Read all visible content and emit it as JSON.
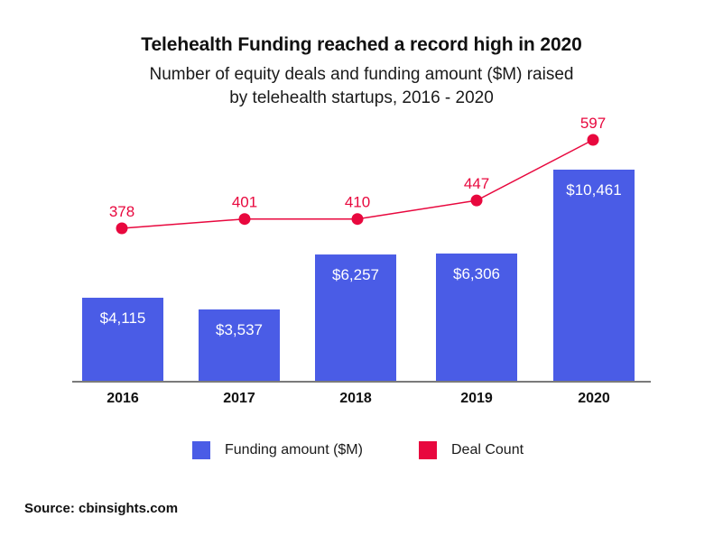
{
  "colors": {
    "bar": "#4A5CE6",
    "line": "#E8083E",
    "axis": "#7a7a7a",
    "bar_label": "#ffffff",
    "deal_label": "#E8083E"
  },
  "chart_data": {
    "type": "bar",
    "title": "Telehealth Funding reached a record high in 2020",
    "subtitle_lines": [
      "Number of equity deals and funding amount ($M) raised",
      "by telehealth startups, 2016 - 2020"
    ],
    "categories": [
      "2016",
      "2017",
      "2018",
      "2019",
      "2020"
    ],
    "series": [
      {
        "name": "Funding amount ($M)",
        "type": "bar",
        "values": [
          4115,
          3537,
          6257,
          6306,
          10461
        ],
        "labels": [
          "$4,115",
          "$3,537",
          "$6,257",
          "$6,306",
          "$10,461"
        ]
      },
      {
        "name": "Deal Count",
        "type": "line",
        "values": [
          378,
          401,
          410,
          447,
          597
        ],
        "labels": [
          "378",
          "401",
          "410",
          "447",
          "597"
        ]
      }
    ],
    "xlabel": "",
    "ylabel": "",
    "ylim_bars": [
      0,
      10461
    ],
    "grid": false,
    "legend_position": "bottom",
    "legend": [
      "Funding amount ($M)",
      "Deal Count"
    ]
  },
  "source": "Source: cbinsights.com"
}
